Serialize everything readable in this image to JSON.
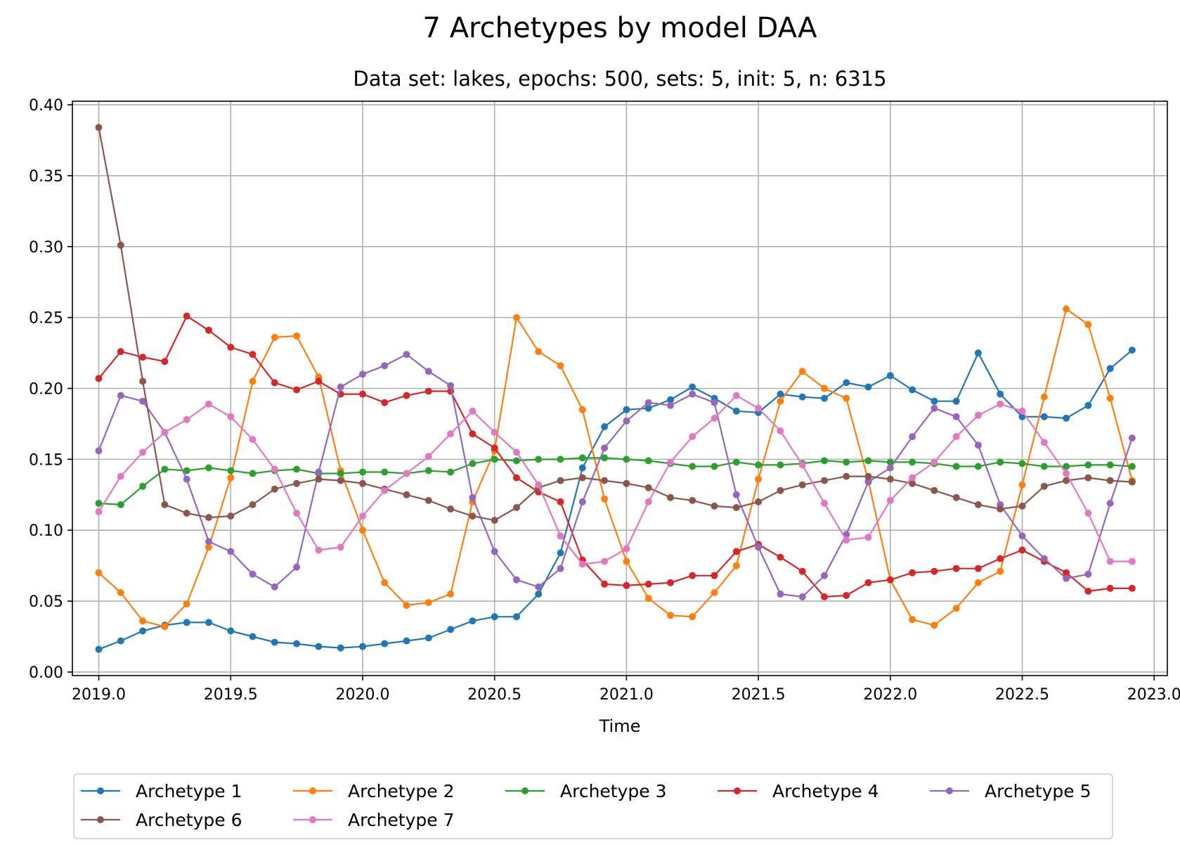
{
  "chart_data": {
    "type": "line",
    "title": "7 Archetypes by model DAA",
    "subtitle": "Data set: lakes, epochs: 500, sets: 5, init: 5, n: 6315",
    "xlabel": "Time",
    "ylabel": "",
    "xlim": [
      2018.9,
      2023.05
    ],
    "ylim": [
      -0.0025,
      0.4025
    ],
    "xticks": [
      2019.0,
      2019.5,
      2020.0,
      2020.5,
      2021.0,
      2021.5,
      2022.0,
      2022.5,
      2023.0
    ],
    "xtick_labels": [
      "2019.0",
      "2019.5",
      "2020.0",
      "2020.5",
      "2021.0",
      "2021.5",
      "2022.0",
      "2022.5",
      "2023.0"
    ],
    "yticks": [
      0.0,
      0.05,
      0.1,
      0.15,
      0.2,
      0.25,
      0.3,
      0.35,
      0.4
    ],
    "ytick_labels": [
      "0.00",
      "0.05",
      "0.10",
      "0.15",
      "0.20",
      "0.25",
      "0.30",
      "0.35",
      "0.40"
    ],
    "grid": true,
    "legend_position": "below",
    "x_start": 2019.0,
    "x_step_months": 1,
    "series": [
      {
        "name": "Archetype 1",
        "color": "#1f77b4",
        "values": [
          0.016,
          0.022,
          0.029,
          0.033,
          0.035,
          0.035,
          0.029,
          0.025,
          0.021,
          0.02,
          0.018,
          0.017,
          0.018,
          0.02,
          0.022,
          0.024,
          0.03,
          0.036,
          0.039,
          0.039,
          0.055,
          0.084,
          0.144,
          0.173,
          0.185,
          0.186,
          0.192,
          0.201,
          0.193,
          0.184,
          0.183,
          0.196,
          0.194,
          0.193,
          0.204,
          0.201,
          0.209,
          0.199,
          0.191,
          0.191,
          0.225,
          0.196,
          0.18,
          0.18,
          0.179,
          0.188,
          0.214,
          0.227
        ]
      },
      {
        "name": "Archetype 2",
        "color": "#ff7f0e",
        "values": [
          0.07,
          0.056,
          0.036,
          0.032,
          0.048,
          0.088,
          0.137,
          0.205,
          0.236,
          0.237,
          0.208,
          0.142,
          0.1,
          0.063,
          0.047,
          0.049,
          0.055,
          0.12,
          0.156,
          0.25,
          0.226,
          0.216,
          0.185,
          0.122,
          0.078,
          0.052,
          0.04,
          0.039,
          0.056,
          0.075,
          0.136,
          0.191,
          0.212,
          0.2,
          0.193,
          0.135,
          0.065,
          0.037,
          0.033,
          0.045,
          0.063,
          0.071,
          0.132,
          0.194,
          0.256,
          0.245,
          0.193,
          0.135
        ]
      },
      {
        "name": "Archetype 3",
        "color": "#2ca02c",
        "values": [
          0.119,
          0.118,
          0.131,
          0.143,
          0.142,
          0.144,
          0.142,
          0.14,
          0.142,
          0.143,
          0.14,
          0.14,
          0.141,
          0.141,
          0.14,
          0.142,
          0.141,
          0.147,
          0.15,
          0.149,
          0.15,
          0.15,
          0.151,
          0.151,
          0.15,
          0.149,
          0.147,
          0.145,
          0.145,
          0.148,
          0.146,
          0.146,
          0.147,
          0.149,
          0.148,
          0.149,
          0.148,
          0.148,
          0.147,
          0.145,
          0.145,
          0.148,
          0.147,
          0.145,
          0.145,
          0.146,
          0.146,
          0.145
        ]
      },
      {
        "name": "Archetype 4",
        "color": "#d62728",
        "values": [
          0.207,
          0.226,
          0.222,
          0.219,
          0.251,
          0.241,
          0.229,
          0.224,
          0.204,
          0.199,
          0.205,
          0.196,
          0.196,
          0.19,
          0.195,
          0.198,
          0.198,
          0.168,
          0.158,
          0.137,
          0.127,
          0.12,
          0.079,
          0.062,
          0.061,
          0.062,
          0.063,
          0.068,
          0.068,
          0.085,
          0.09,
          0.081,
          0.071,
          0.053,
          0.054,
          0.063,
          0.065,
          0.07,
          0.071,
          0.073,
          0.073,
          0.08,
          0.086,
          0.078,
          0.07,
          0.057,
          0.059,
          0.059
        ]
      },
      {
        "name": "Archetype 5",
        "color": "#9467bd",
        "values": [
          0.156,
          0.195,
          0.191,
          0.169,
          0.136,
          0.092,
          0.085,
          0.069,
          0.06,
          0.074,
          0.141,
          0.201,
          0.21,
          0.216,
          0.224,
          0.212,
          0.202,
          0.123,
          0.085,
          0.065,
          0.06,
          0.073,
          0.12,
          0.158,
          0.177,
          0.19,
          0.188,
          0.196,
          0.19,
          0.125,
          0.088,
          0.055,
          0.053,
          0.068,
          0.097,
          0.134,
          0.144,
          0.166,
          0.186,
          0.18,
          0.16,
          0.118,
          0.096,
          0.08,
          0.066,
          0.069,
          0.119,
          0.165
        ]
      },
      {
        "name": "Archetype 6",
        "color": "#8c564b",
        "values": [
          0.384,
          0.301,
          0.205,
          0.118,
          0.112,
          0.109,
          0.11,
          0.118,
          0.129,
          0.133,
          0.136,
          0.135,
          0.133,
          0.129,
          0.125,
          0.121,
          0.115,
          0.11,
          0.107,
          0.116,
          0.13,
          0.135,
          0.137,
          0.135,
          0.133,
          0.13,
          0.123,
          0.121,
          0.117,
          0.116,
          0.12,
          0.128,
          0.132,
          0.135,
          0.138,
          0.138,
          0.136,
          0.133,
          0.128,
          0.123,
          0.118,
          0.115,
          0.117,
          0.131,
          0.135,
          0.137,
          0.135,
          0.134
        ]
      },
      {
        "name": "Archetype 7",
        "color": "#e377c2",
        "values": [
          0.113,
          0.138,
          0.155,
          0.169,
          0.178,
          0.189,
          0.18,
          0.164,
          0.143,
          0.112,
          0.086,
          0.088,
          0.11,
          0.128,
          0.14,
          0.152,
          0.168,
          0.184,
          0.169,
          0.155,
          0.132,
          0.096,
          0.076,
          0.078,
          0.087,
          0.12,
          0.148,
          0.166,
          0.179,
          0.195,
          0.186,
          0.17,
          0.146,
          0.119,
          0.093,
          0.095,
          0.121,
          0.137,
          0.148,
          0.166,
          0.181,
          0.189,
          0.184,
          0.162,
          0.14,
          0.112,
          0.078,
          0.078
        ]
      }
    ]
  }
}
